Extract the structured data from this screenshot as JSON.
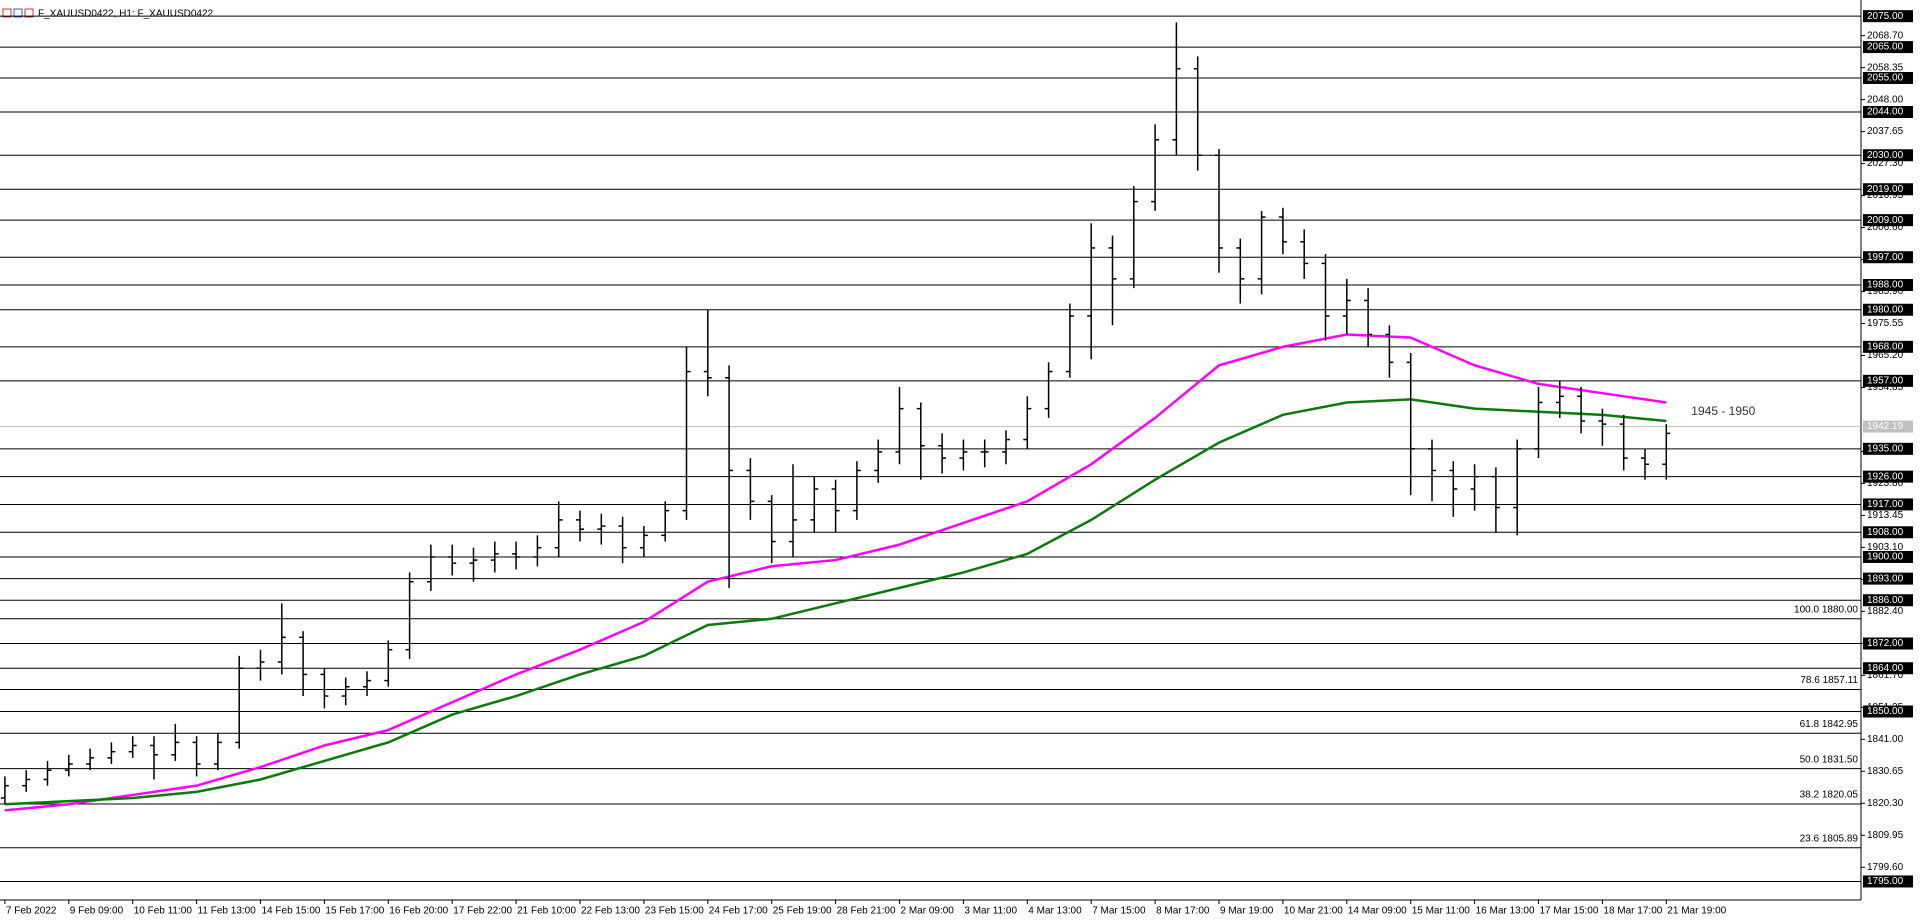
{
  "chart_data": {
    "type": "ohlc",
    "title": "F_XAUUSD0422, H1:  F_XAUUSD0422",
    "annotation": "1945 - 1950",
    "x": [
      "7 Feb 2022",
      null,
      null,
      "9 Feb 09:00",
      null,
      null,
      "10 Feb 11:00",
      null,
      null,
      "11 Feb 13:00",
      null,
      null,
      "14 Feb 15:00",
      null,
      null,
      "15 Feb 17:00",
      null,
      null,
      "16 Feb 20:00",
      null,
      null,
      "17 Feb 22:00",
      null,
      null,
      "21 Feb 10:00",
      null,
      null,
      "22 Feb 13:00",
      null,
      null,
      "23 Feb 15:00",
      null,
      null,
      "24 Feb 17:00",
      null,
      null,
      "25 Feb 19:00",
      null,
      null,
      "28 Feb 21:00",
      null,
      null,
      "2 Mar 09:00",
      null,
      null,
      "3 Mar 11:00",
      null,
      null,
      "4 Mar 13:00",
      null,
      null,
      "7 Mar 15:00",
      null,
      null,
      "8 Mar 17:00",
      null,
      null,
      "9 Mar 19:00",
      null,
      null,
      "10 Mar 21:00",
      null,
      null,
      "14 Mar 09:00",
      null,
      null,
      "15 Mar 11:00",
      null,
      null,
      "16 Mar 13:00",
      null,
      null,
      "17 Mar 15:00",
      null,
      null,
      "18 Mar 17:00",
      null,
      null,
      "21 Mar 19:00"
    ],
    "open": [
      1822,
      1826,
      1828,
      1831,
      1833,
      1835,
      1837,
      1839,
      1836,
      1840,
      1833,
      1840,
      1864,
      1866,
      1874,
      1862,
      1855,
      1858,
      1860,
      1870,
      1892,
      1900,
      1898,
      1899,
      1901,
      1900,
      1903,
      1912,
      1909,
      1910,
      1903,
      1907,
      1915,
      1960,
      1958,
      1928,
      1918,
      1905,
      1912,
      1922,
      1915,
      1928,
      1934,
      1948,
      1936,
      1932,
      1934,
      1934,
      1938,
      1948,
      1960,
      1978,
      2000,
      1990,
      2015,
      2035,
      2058,
      2030,
      2000,
      1990,
      2010,
      2002,
      1995,
      1978,
      1983,
      1972,
      1963,
      1935,
      1928,
      1922,
      1926,
      1916,
      1935,
      1950,
      1952,
      1944,
      1943,
      1932,
      1930
    ],
    "high": [
      1829,
      1831,
      1834,
      1836,
      1838,
      1840,
      1842,
      1842,
      1846,
      1842,
      1843,
      1868,
      1870,
      1885,
      1876,
      1864,
      1861,
      1863,
      1873,
      1895,
      1904,
      1904,
      1903,
      1905,
      1905,
      1907,
      1918,
      1915,
      1914,
      1913,
      1910,
      1918,
      1968,
      1980,
      1962,
      1932,
      1920,
      1930,
      1926,
      1925,
      1931,
      1938,
      1955,
      1950,
      1940,
      1938,
      1938,
      1941,
      1952,
      1963,
      1982,
      2008,
      2004,
      2020,
      2040,
      2073,
      2062,
      2032,
      2003,
      2012,
      2013,
      2006,
      1998,
      1990,
      1987,
      1975,
      1966,
      1938,
      1931,
      1930,
      1929,
      1938,
      1955,
      1957,
      1955,
      1948,
      1946,
      1935,
      1943
    ],
    "low": [
      1820,
      1824,
      1826,
      1829,
      1831,
      1833,
      1835,
      1828,
      1834,
      1829,
      1831,
      1838,
      1860,
      1862,
      1855,
      1851,
      1852,
      1855,
      1858,
      1867,
      1889,
      1894,
      1892,
      1895,
      1896,
      1897,
      1900,
      1905,
      1904,
      1898,
      1900,
      1905,
      1912,
      1952,
      1890,
      1912,
      1898,
      1900,
      1908,
      1908,
      1912,
      1924,
      1930,
      1925,
      1927,
      1928,
      1929,
      1930,
      1935,
      1945,
      1958,
      1964,
      1975,
      1987,
      2012,
      2030,
      2025,
      1992,
      1982,
      1985,
      1998,
      1990,
      1970,
      1972,
      1968,
      1958,
      1920,
      1918,
      1913,
      1915,
      1908,
      1907,
      1932,
      1945,
      1940,
      1936,
      1928,
      1925,
      1925
    ],
    "close": [
      1826,
      1828,
      1831,
      1833,
      1835,
      1837,
      1839,
      1836,
      1840,
      1833,
      1840,
      1864,
      1866,
      1874,
      1862,
      1855,
      1858,
      1860,
      1870,
      1892,
      1900,
      1898,
      1899,
      1901,
      1900,
      1903,
      1912,
      1909,
      1910,
      1903,
      1907,
      1915,
      1960,
      1958,
      1928,
      1918,
      1905,
      1912,
      1922,
      1915,
      1928,
      1934,
      1948,
      1936,
      1932,
      1934,
      1934,
      1938,
      1948,
      1960,
      1978,
      2000,
      1990,
      2015,
      2035,
      2058,
      2030,
      2000,
      1990,
      2010,
      2002,
      1995,
      1978,
      1983,
      1972,
      1963,
      1935,
      1928,
      1922,
      1926,
      1916,
      1935,
      1950,
      1952,
      1944,
      1943,
      1932,
      1930,
      1940
    ],
    "series": [
      {
        "color": "#ff00ff",
        "x": [
          0,
          3,
          6,
          9,
          12,
          15,
          18,
          21,
          24,
          27,
          30,
          33,
          36,
          39,
          42,
          45,
          48,
          51,
          54,
          57,
          60,
          63,
          66,
          69,
          72,
          75,
          78
        ],
        "values": [
          1818,
          1820,
          1823,
          1826,
          1832,
          1839,
          1844,
          1853,
          1862,
          1870,
          1879,
          1892,
          1897,
          1899,
          1904,
          1911,
          1918,
          1930,
          1945,
          1962,
          1968,
          1972,
          1971,
          1962,
          1956,
          1953,
          1950
        ]
      },
      {
        "color": "#0a7a0a",
        "x": [
          0,
          3,
          6,
          9,
          12,
          15,
          18,
          21,
          24,
          27,
          30,
          33,
          36,
          39,
          42,
          45,
          48,
          51,
          54,
          57,
          60,
          63,
          66,
          69,
          72,
          75,
          78
        ],
        "values": [
          1820,
          1821,
          1822,
          1824,
          1828,
          1834,
          1840,
          1849,
          1855,
          1862,
          1868,
          1878,
          1880,
          1885,
          1890,
          1895,
          1901,
          1912,
          1925,
          1937,
          1946,
          1950,
          1951,
          1948,
          1947,
          1946,
          1944
        ]
      }
    ],
    "ylim": [
      1789,
      2077
    ],
    "yticks": [
      {
        "value": 2068.7,
        "label": "2068.70"
      },
      {
        "value": 2058.35,
        "label": "2058.35"
      },
      {
        "value": 2048,
        "label": "2048.00"
      },
      {
        "value": 2037.65,
        "label": "2037.65"
      },
      {
        "value": 2027.3,
        "label": "2027.30"
      },
      {
        "value": 2016.95,
        "label": "2016.95"
      },
      {
        "value": 2006.6,
        "label": "2006.60"
      },
      {
        "value": 1996.25,
        "label": "1996.25"
      },
      {
        "value": 1985.9,
        "label": "1985.90"
      },
      {
        "value": 1975.55,
        "label": "1975.55"
      },
      {
        "value": 1965.2,
        "label": "1965.20"
      },
      {
        "value": 1954.85,
        "label": "1954.85"
      },
      {
        "value": 1934.15,
        "label": "1934.15"
      },
      {
        "value": 1923.8,
        "label": "1923.80"
      },
      {
        "value": 1913.45,
        "label": "1913.45"
      },
      {
        "value": 1903.1,
        "label": "1903.10"
      },
      {
        "value": 1892.75,
        "label": "1892.75"
      },
      {
        "value": 1882.4,
        "label": "1882.40"
      },
      {
        "value": 1872.05,
        "label": "1872.05"
      },
      {
        "value": 1861.7,
        "label": "1861.70"
      },
      {
        "value": 1851.35,
        "label": "1851.35"
      },
      {
        "value": 1841,
        "label": "1841.00"
      },
      {
        "value": 1830.65,
        "label": "1830.65"
      },
      {
        "value": 1820.3,
        "label": "1820.30"
      },
      {
        "value": 1809.95,
        "label": "1809.95"
      },
      {
        "value": 1799.6,
        "label": "1799.60"
      }
    ],
    "levels": [
      {
        "value": 2075,
        "label": "2075.00"
      },
      {
        "value": 2065,
        "label": "2065.00"
      },
      {
        "value": 2055,
        "label": "2055.00"
      },
      {
        "value": 2044,
        "label": "2044.00"
      },
      {
        "value": 2030,
        "label": "2030.00"
      },
      {
        "value": 2019,
        "label": "2019.00"
      },
      {
        "value": 2009,
        "label": "2009.00"
      },
      {
        "value": 1997,
        "label": "1997.00"
      },
      {
        "value": 1988,
        "label": "1988.00"
      },
      {
        "value": 1980,
        "label": "1980.00"
      },
      {
        "value": 1968,
        "label": "1968.00"
      },
      {
        "value": 1957,
        "label": "1957.00"
      },
      {
        "value": 1935,
        "label": "1935.00"
      },
      {
        "value": 1926,
        "label": "1926.00"
      },
      {
        "value": 1917,
        "label": "1917.00"
      },
      {
        "value": 1908,
        "label": "1908.00"
      },
      {
        "value": 1900,
        "label": "1900.00"
      },
      {
        "value": 1893,
        "label": "1893.00"
      },
      {
        "value": 1886,
        "label": "1886.00"
      },
      {
        "value": 1872,
        "label": "1872.00"
      },
      {
        "value": 1864,
        "label": "1864.00"
      },
      {
        "value": 1850,
        "label": "1850.00"
      },
      {
        "value": 1795,
        "label": "1795.00"
      }
    ],
    "fib_levels": [
      {
        "value": 1880,
        "label": "100.0 1880.00"
      },
      {
        "value": 1857.11,
        "label": "78.6 1857.11"
      },
      {
        "value": 1842.95,
        "label": "61.8 1842.95"
      },
      {
        "value": 1831.5,
        "label": "50.0 1831.50"
      },
      {
        "value": 1820.05,
        "label": "38.2 1820.05"
      },
      {
        "value": 1805.89,
        "label": "23.6 1805.89"
      }
    ],
    "current_price": 1942.19
  }
}
